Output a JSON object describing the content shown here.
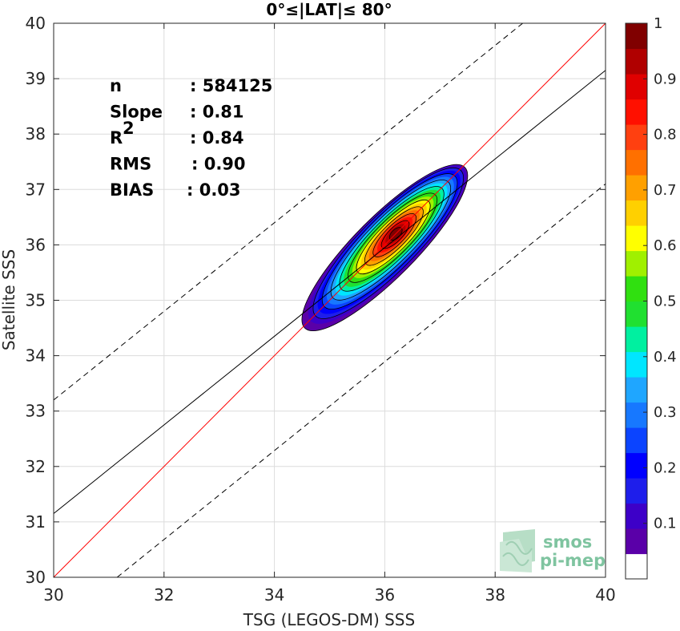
{
  "chart_data": {
    "type": "heatmap",
    "title": "0°≤|LAT|≤ 80°",
    "xlabel": "TSG (LEGOS-DM) SSS",
    "ylabel": "Satellite SSS",
    "xlim": [
      30,
      40
    ],
    "ylim": [
      30,
      40
    ],
    "xticks": [
      "30",
      "32",
      "34",
      "36",
      "38",
      "40"
    ],
    "yticks": [
      "30",
      "31",
      "32",
      "33",
      "34",
      "35",
      "36",
      "37",
      "38",
      "39",
      "40"
    ],
    "grid": true,
    "stats": [
      {
        "label": "n",
        "value": ": 584125"
      },
      {
        "label": "Slope",
        "value": ": 0.81"
      },
      {
        "label": "R",
        "sup": "2",
        "value": ": 0.84"
      },
      {
        "label": "RMS",
        "value": ": 0.90"
      },
      {
        "label": "BIAS",
        "value": ": 0.03"
      }
    ],
    "lines": [
      {
        "kind": "one-to-one",
        "color": "#ff0000",
        "style": "solid",
        "x": [
          30,
          40
        ],
        "y": [
          30,
          40
        ]
      },
      {
        "kind": "regression",
        "color": "#000000",
        "style": "solid",
        "x": [
          30,
          40
        ],
        "y": [
          31.15,
          39.15
        ]
      },
      {
        "kind": "upper-bound",
        "color": "#000000",
        "style": "dashed",
        "x": [
          30,
          38.5
        ],
        "y": [
          33.2,
          40
        ]
      },
      {
        "kind": "lower-bound",
        "color": "#000000",
        "style": "dashed",
        "x": [
          31.15,
          40
        ],
        "y": [
          30,
          37.1
        ]
      }
    ],
    "density_peak": {
      "x": 36.2,
      "y": 36.2,
      "value": 1.0
    },
    "density_axis": {
      "x": [
        34.55,
        37.45
      ],
      "y": [
        34.5,
        37.4
      ]
    },
    "colorbar": {
      "min": 0.05,
      "max": 1.0,
      "ticks": [
        "0.1",
        "0.2",
        "0.3",
        "0.4",
        "0.5",
        "0.6",
        "0.7",
        "0.8",
        "0.9",
        "1"
      ],
      "colors": [
        "#ffffff",
        "#5a00a8",
        "#3d00c8",
        "#1e1eeb",
        "#0000ff",
        "#0b44ff",
        "#1778ff",
        "#1fa6ff",
        "#00e6ff",
        "#00f0a0",
        "#20e030",
        "#30e010",
        "#a0f000",
        "#ffff00",
        "#ffd000",
        "#ffa000",
        "#ff7000",
        "#ff4010",
        "#ff1000",
        "#e00000",
        "#b00000",
        "#800000"
      ]
    }
  },
  "logo": {
    "line1": "smos",
    "line2": "pi-mep"
  }
}
